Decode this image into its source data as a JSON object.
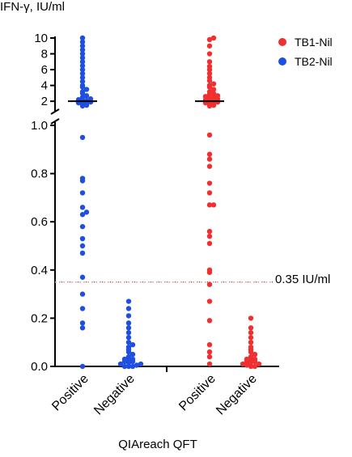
{
  "chart_data": {
    "type": "scatter",
    "ylabel": "IFN-γ, IU/ml",
    "xlabel": "QIAreach QFT",
    "categories": [
      "Positive",
      "Negative",
      "Positive",
      "Negative"
    ],
    "y_axis_upper": {
      "range": [
        1.2,
        10
      ],
      "ticks": [
        "2",
        "4",
        "6",
        "8",
        "10"
      ]
    },
    "y_axis_lower": {
      "range": [
        0,
        1.0
      ],
      "ticks": [
        "0.0",
        "0.2",
        "0.4",
        "0.6",
        "0.8",
        "1.0"
      ]
    },
    "axis_break": true,
    "threshold": {
      "value": 0.35,
      "label": "0.35 IU/ml"
    },
    "series": [
      {
        "name": "TB1-Nil",
        "color": "#f03030",
        "groups": [
          {
            "category_index": 2,
            "values": [
              0.01,
              0.04,
              0.06,
              0.09,
              0.19,
              0.27,
              0.34,
              0.39,
              0.4,
              0.51,
              0.54,
              0.56,
              0.67,
              0.67,
              0.72,
              0.76,
              0.83,
              0.86,
              0.88,
              0.96,
              1.4,
              1.5,
              1.6,
              1.7,
              1.8,
              1.9,
              2.0,
              2.1,
              2.2,
              2.3,
              2.4,
              2.5,
              2.6,
              2.7,
              2.9,
              3.0,
              3.2,
              3.5,
              3.8,
              4.0,
              4.2,
              4.6,
              5.0,
              5.5,
              6.0,
              6.4,
              7.0,
              8.0,
              9.0,
              9.8,
              10.0
            ]
          },
          {
            "category_index": 3,
            "values": [
              0.0,
              0.0,
              0.005,
              0.01,
              0.01,
              0.015,
              0.02,
              0.02,
              0.025,
              0.03,
              0.03,
              0.04,
              0.05,
              0.06,
              0.07,
              0.08,
              0.1,
              0.12,
              0.14,
              0.16,
              0.2
            ]
          }
        ]
      },
      {
        "name": "TB2-Nil",
        "color": "#1f4fe0",
        "groups": [
          {
            "category_index": 0,
            "values": [
              0.0,
              0.16,
              0.18,
              0.24,
              0.3,
              0.37,
              0.47,
              0.5,
              0.53,
              0.58,
              0.63,
              0.64,
              0.66,
              0.72,
              0.77,
              0.78,
              0.95,
              1.4,
              1.5,
              1.6,
              1.7,
              1.8,
              1.9,
              2.0,
              2.1,
              2.2,
              2.3,
              2.5,
              2.7,
              3.0,
              3.2,
              3.5,
              3.8,
              4.0,
              4.5,
              5.0,
              5.5,
              6.0,
              6.5,
              7.0,
              7.5,
              8.0,
              8.5,
              9.0,
              9.5,
              10.0
            ]
          },
          {
            "category_index": 1,
            "values": [
              0.0,
              0.0,
              0.0,
              0.005,
              0.01,
              0.01,
              0.015,
              0.02,
              0.02,
              0.025,
              0.03,
              0.03,
              0.04,
              0.05,
              0.06,
              0.07,
              0.08,
              0.09,
              0.1,
              0.12,
              0.14,
              0.16,
              0.18,
              0.21,
              0.24,
              0.27
            ]
          }
        ]
      }
    ],
    "legend_position": "top-right"
  }
}
